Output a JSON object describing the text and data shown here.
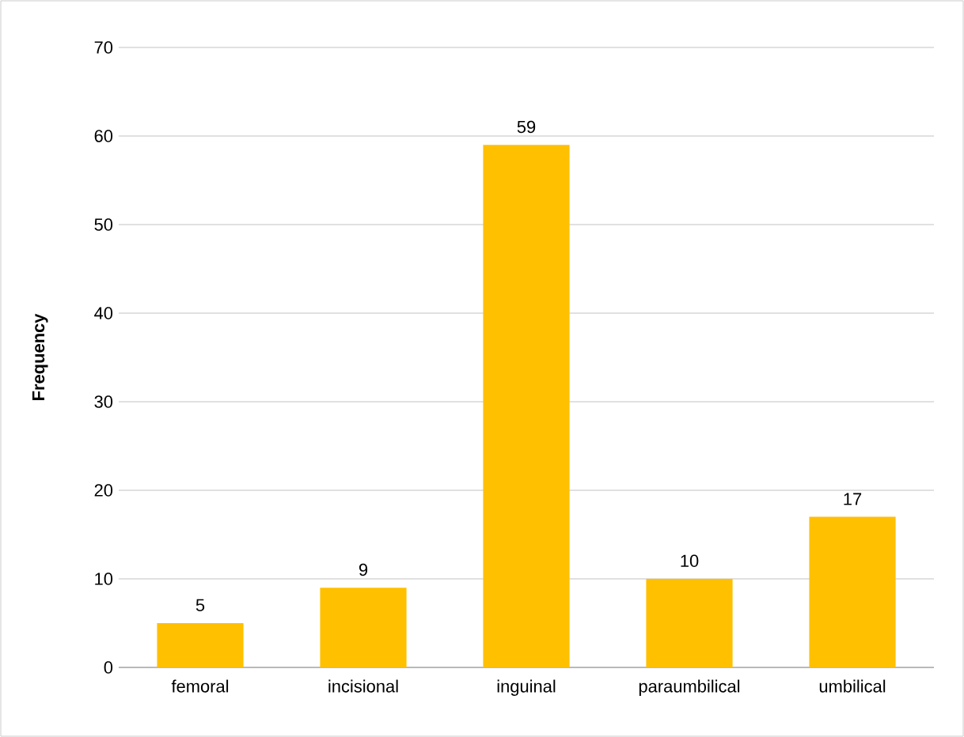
{
  "chart_data": {
    "type": "bar",
    "ylabel": "Frequency",
    "categories": [
      "femoral",
      "incisional",
      "inguinal",
      "paraumbilical",
      "umbilical"
    ],
    "values": [
      5,
      9,
      59,
      10,
      17
    ],
    "color": "#ffc000",
    "ylim": [
      0,
      70
    ],
    "yticks": [
      0,
      10,
      20,
      30,
      40,
      50,
      60,
      70
    ],
    "grid": "y",
    "data_labels": true
  }
}
